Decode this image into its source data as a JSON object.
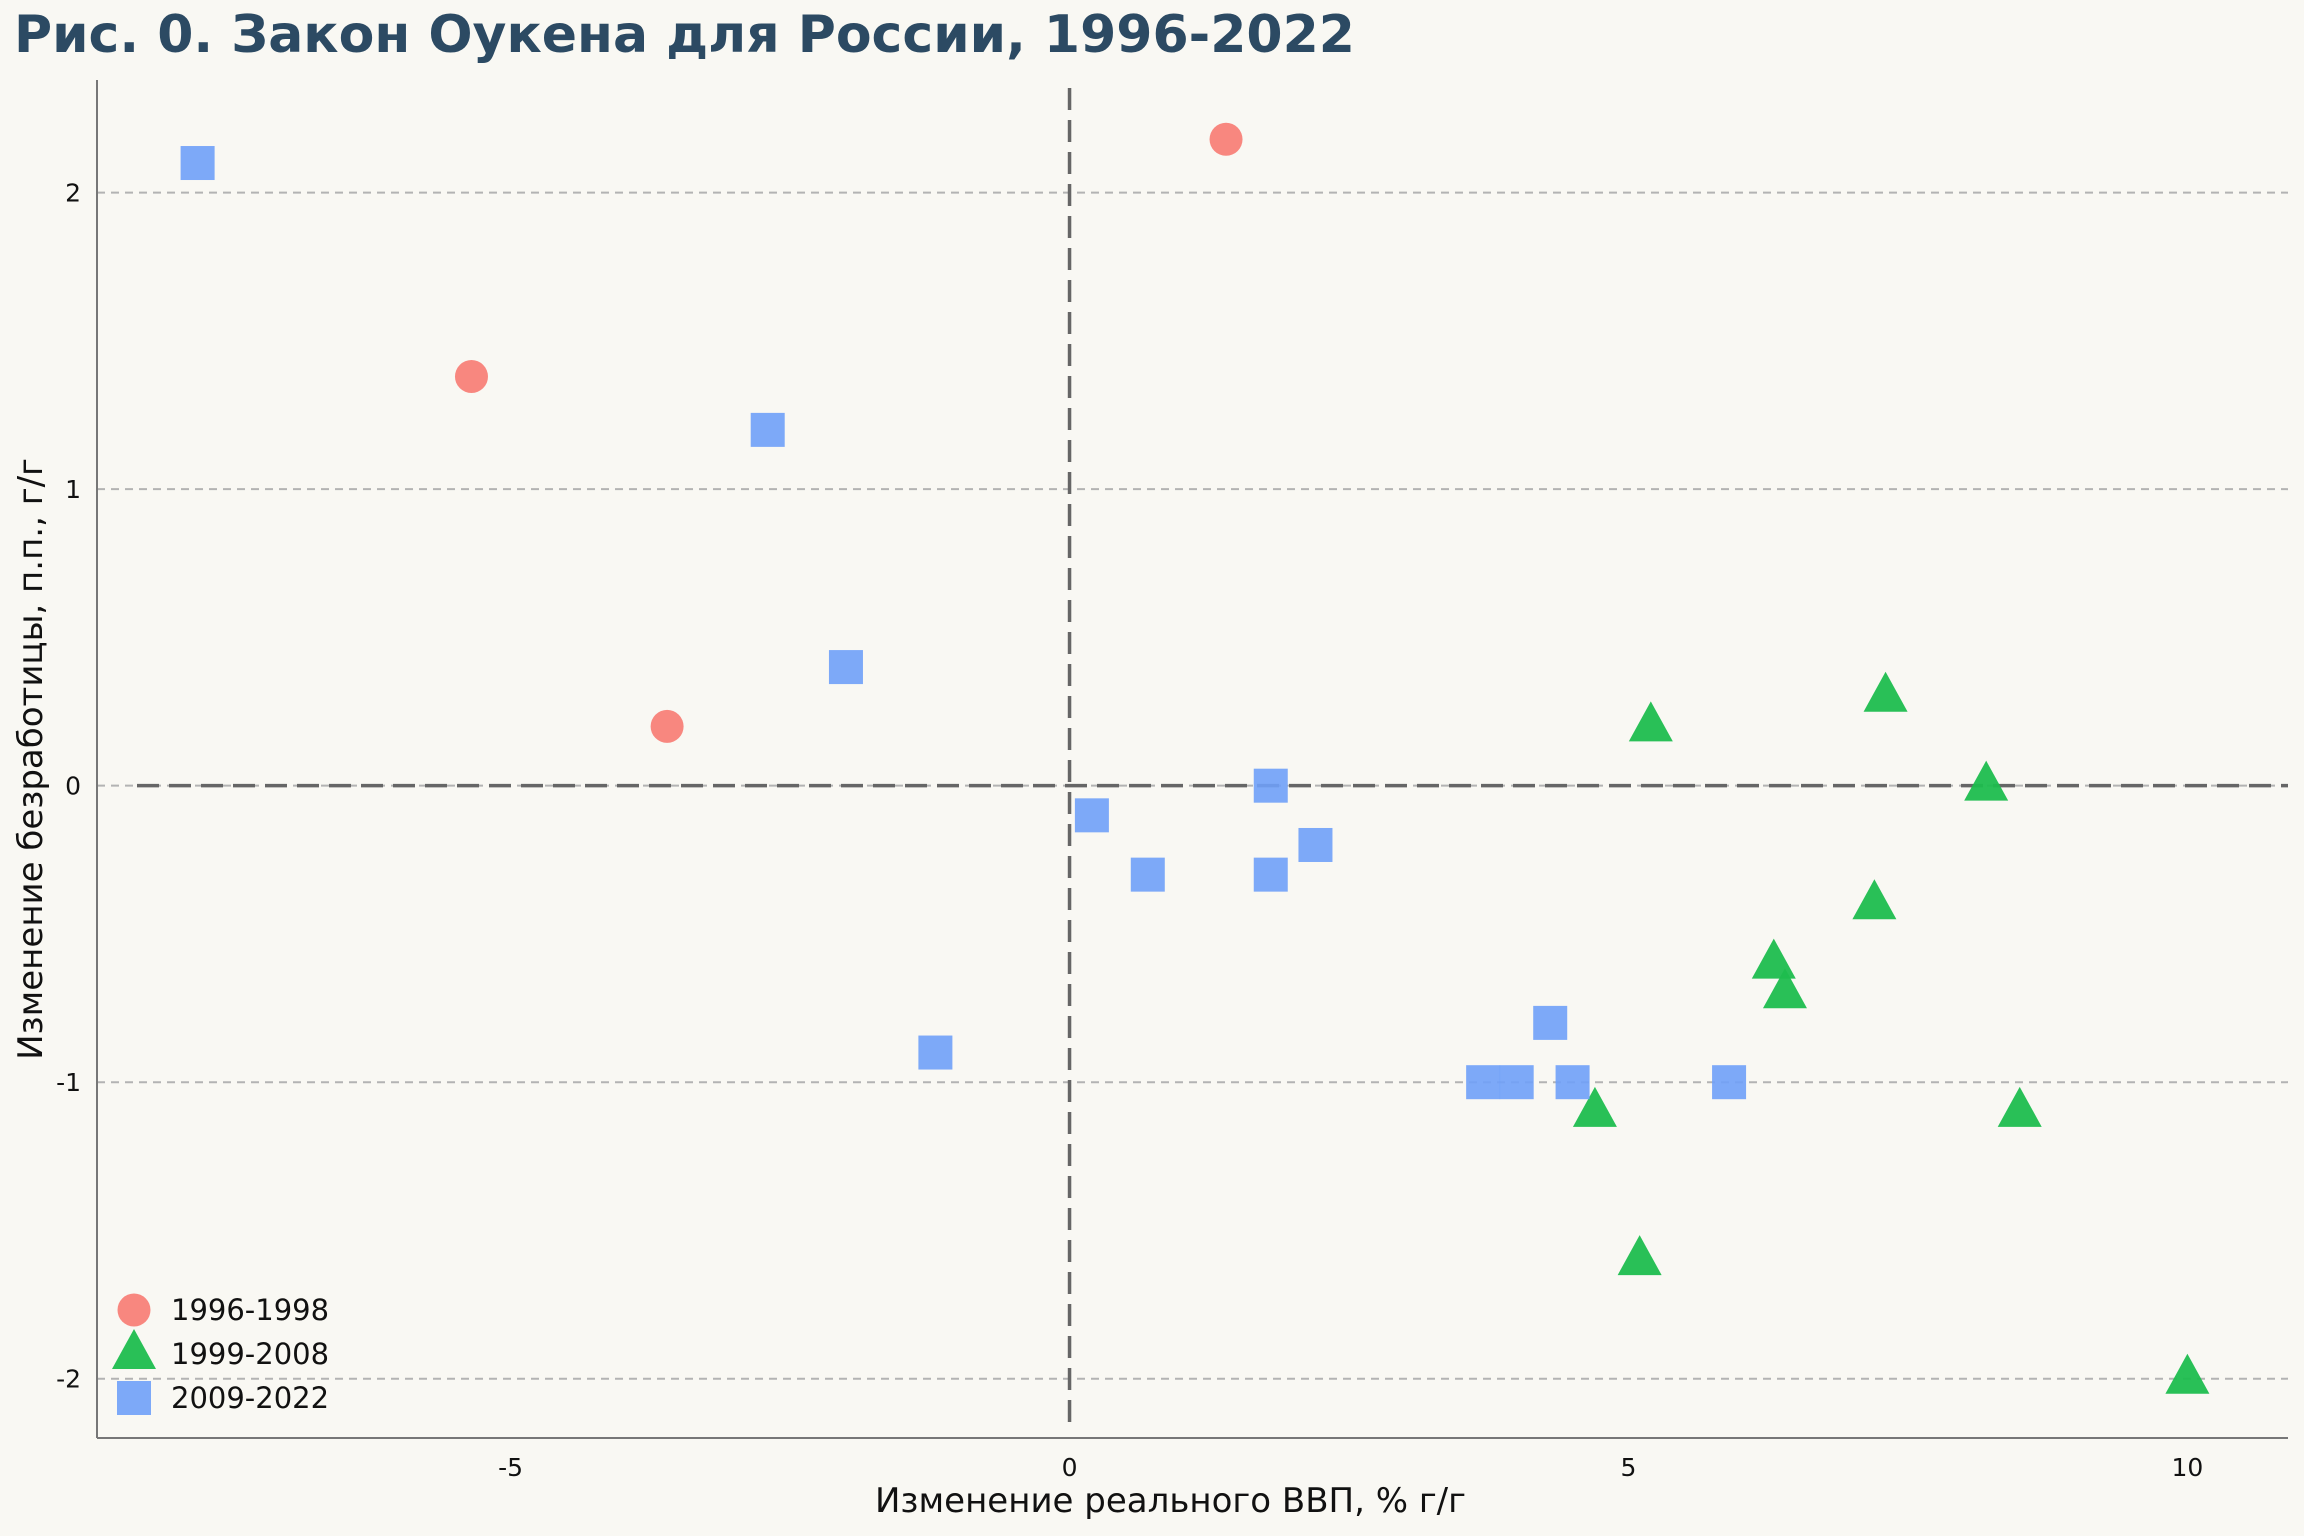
{
  "chart_data": {
    "type": "scatter",
    "title": "Рис. 0. Закон Оукена для России, 1996-2022",
    "xlabel": "Изменение реального ВВП, % г/г",
    "ylabel": "Изменение безработицы, п.п., г/г",
    "xlim": [
      -8.7,
      10.9
    ],
    "ylim": [
      -2.2,
      2.38
    ],
    "x_ticks": [
      -5,
      0,
      5,
      10
    ],
    "x_tick_labels": [
      "-5",
      "0",
      "5",
      "10"
    ],
    "y_ticks": [
      -2,
      -1,
      0,
      1,
      2
    ],
    "y_tick_labels": [
      "-2",
      "-1",
      "0",
      "1",
      "2"
    ],
    "grid": "horizontal dashed at y ticks",
    "reference_lines": [
      "x = 0",
      "y = 0"
    ],
    "legend_position": "bottom-left",
    "series": [
      {
        "name": "1996-1998",
        "marker": "circle",
        "color": "#f8877f",
        "points": [
          [
            -5.35,
            1.38
          ],
          [
            -3.6,
            0.2
          ],
          [
            1.4,
            2.18
          ]
        ]
      },
      {
        "name": "1999-2008",
        "marker": "triangle",
        "color": "#1dbd4e",
        "points": [
          [
            10.0,
            -2.0
          ],
          [
            5.1,
            -1.6
          ],
          [
            4.7,
            -1.1
          ],
          [
            7.3,
            0.3
          ],
          [
            7.2,
            -0.4
          ],
          [
            6.4,
            -0.7
          ],
          [
            8.2,
            0.0
          ],
          [
            8.5,
            -1.1
          ],
          [
            5.2,
            0.2
          ],
          [
            6.3,
            -0.6
          ]
        ]
      },
      {
        "name": "2009-2022",
        "marker": "square",
        "color": "#6fa0f8",
        "points": [
          [
            -7.8,
            2.1
          ],
          [
            4.5,
            -1.0
          ],
          [
            4.3,
            -0.8
          ],
          [
            3.7,
            -1.0
          ],
          [
            1.8,
            -0.3
          ],
          [
            0.7,
            -0.3
          ],
          [
            0.2,
            -0.1
          ],
          [
            1.8,
            0.0
          ],
          [
            2.2,
            -0.2
          ],
          [
            -2.7,
            1.2
          ],
          [
            5.9,
            -1.0
          ],
          [
            -1.2,
            -0.9
          ],
          [
            -2.0,
            0.4
          ],
          [
            4.0,
            -1.0
          ]
        ]
      }
    ]
  }
}
